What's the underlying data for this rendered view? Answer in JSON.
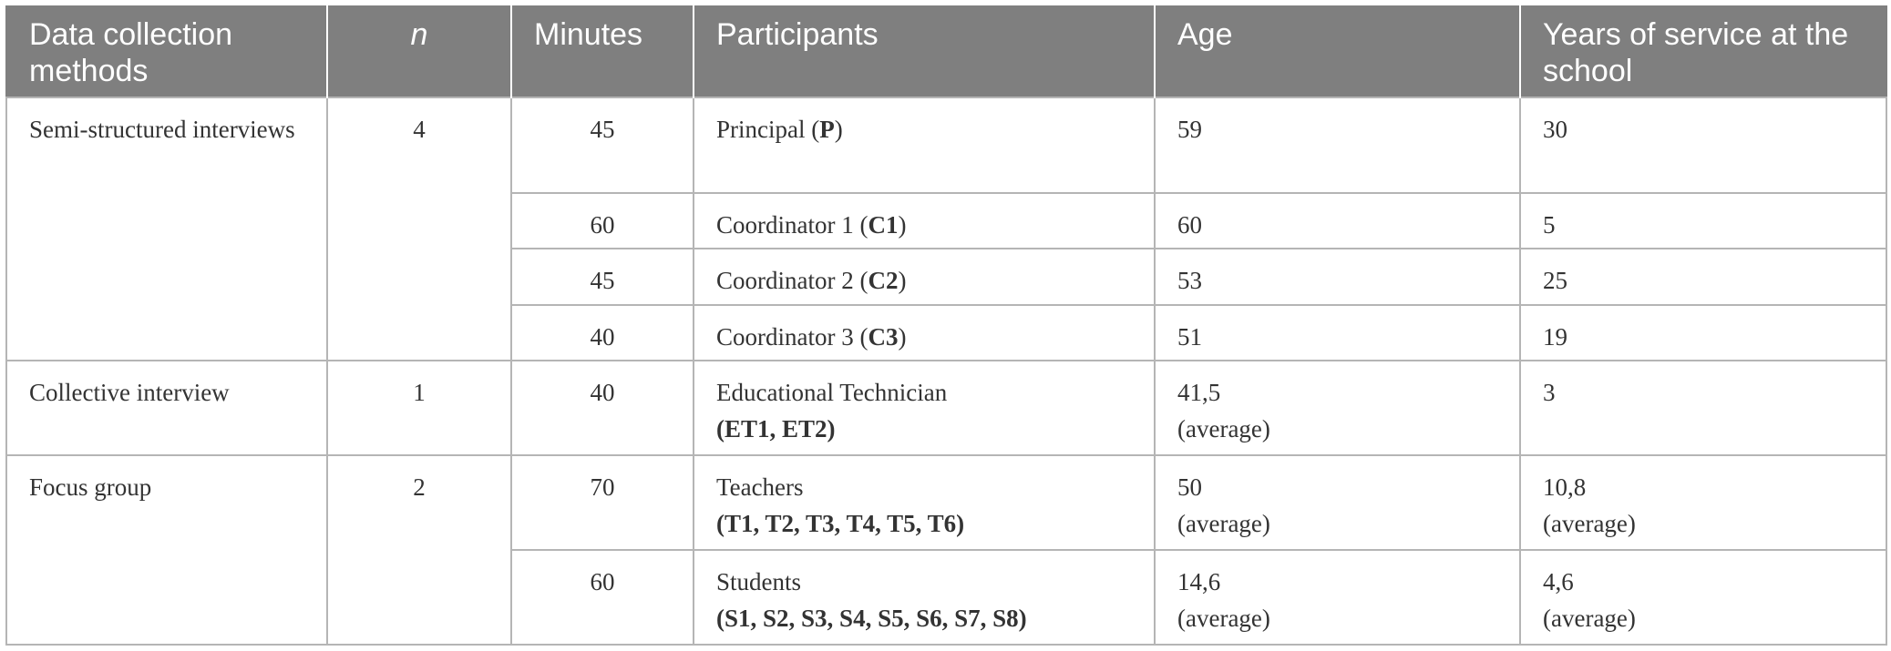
{
  "headers": {
    "method": "Data collection methods",
    "n": "n",
    "minutes": "Minutes",
    "participants": "Participants",
    "age": "Age",
    "years": "Years of service at the school"
  },
  "groups": {
    "semi": {
      "method": "Semi-structured interviews",
      "n": "4"
    },
    "collective": {
      "method": "Collective interview",
      "n": "1"
    },
    "focus": {
      "method": "Focus group",
      "n": "2"
    }
  },
  "rows": [
    {
      "minutes": "45",
      "participant": "Principal",
      "codes": "P",
      "age": "59",
      "age_note": "",
      "years": "30",
      "years_note": ""
    },
    {
      "minutes": "60",
      "participant": "Coordinator 1",
      "codes": "C1",
      "age": "60",
      "age_note": "",
      "years": "5",
      "years_note": ""
    },
    {
      "minutes": "45",
      "participant": "Coordinator 2",
      "codes": "C2",
      "age": "53",
      "age_note": "",
      "years": "25",
      "years_note": ""
    },
    {
      "minutes": "40",
      "participant": "Coordinator 3",
      "codes": "C3",
      "age": "51",
      "age_note": "",
      "years": "19",
      "years_note": ""
    },
    {
      "minutes": "40",
      "participant": "Educational Technician",
      "codes": "ET1, ET2",
      "age": "41,5",
      "age_note": "(average)",
      "years": "3",
      "years_note": ""
    },
    {
      "minutes": "70",
      "participant": "Teachers",
      "codes": "T1, T2, T3, T4, T5, T6",
      "age": "50",
      "age_note": "(average)",
      "years": "10,8",
      "years_note": "(average)"
    },
    {
      "minutes": "60",
      "participant": "Students",
      "codes": "S1, S2, S3, S4, S5, S6, S7, S8",
      "age": "14,6",
      "age_note": "(average)",
      "years": "4,6",
      "years_note": "(average)"
    }
  ]
}
